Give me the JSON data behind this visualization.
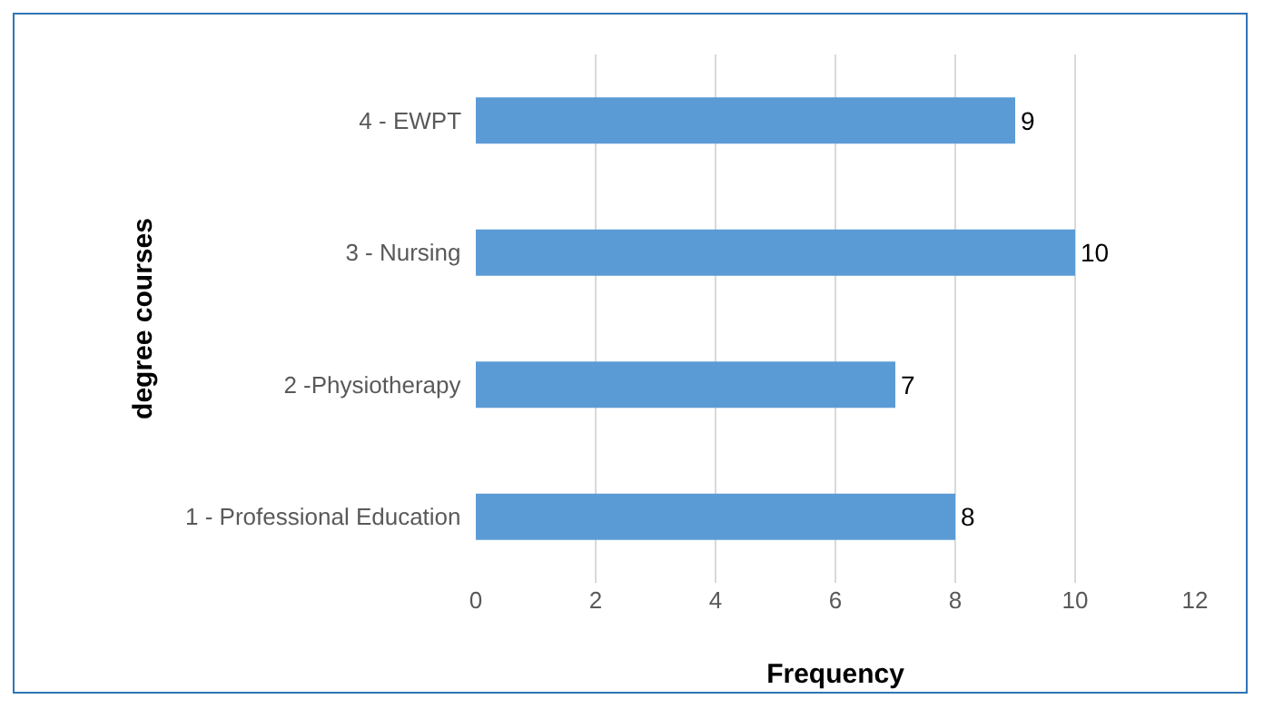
{
  "chart_data": {
    "type": "bar",
    "orientation": "horizontal",
    "xlabel": "Frequency",
    "ylabel": "degree courses",
    "categories": [
      "4 - EWPT",
      "3 - Nursing",
      "2 -Physiotherapy",
      "1 - Professional Education"
    ],
    "values": [
      9,
      10,
      7,
      8
    ],
    "color": "#5b9bd5",
    "xlim": [
      0,
      12
    ],
    "xticks": [
      0,
      2,
      4,
      6,
      8,
      10,
      12
    ],
    "grid": "x",
    "data_labels": true,
    "legend": false
  }
}
